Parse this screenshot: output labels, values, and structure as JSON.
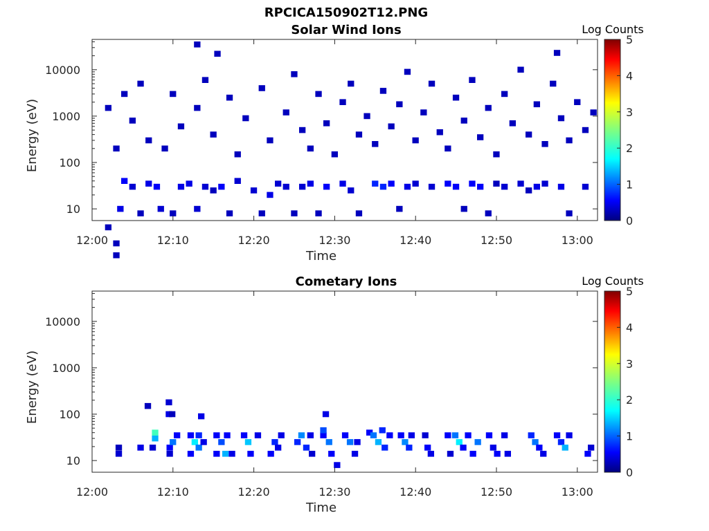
{
  "figure": {
    "title": "RPCICA150902T12.PNG"
  },
  "chart_data": [
    {
      "type": "heatmap",
      "title": "Solar Wind Ions",
      "xlabel": "Time",
      "ylabel": "Energy (eV)",
      "xticks": [
        "12:00",
        "12:10",
        "12:20",
        "12:30",
        "12:40",
        "12:50",
        "13:00"
      ],
      "xlim_minutes": [
        0,
        62.5
      ],
      "yscale": "log",
      "yticks": [
        "10",
        "100",
        "1000",
        "10000"
      ],
      "ylim": [
        5.6,
        45000
      ],
      "colorbar": {
        "label": "Log Counts",
        "range": [
          0,
          5
        ],
        "ticks": [
          "0",
          "1",
          "2",
          "3",
          "4",
          "5"
        ],
        "colormap": "jet"
      },
      "cells": [
        [
          2,
          4,
          0.3
        ],
        [
          3,
          1,
          0.3
        ],
        [
          3,
          1.8,
          0.3
        ],
        [
          4,
          40,
          0.6
        ],
        [
          5,
          30,
          0.4
        ],
        [
          3,
          200,
          0.3
        ],
        [
          2,
          1500,
          0.3
        ],
        [
          3.5,
          10,
          0.5
        ],
        [
          6,
          8,
          0.3
        ],
        [
          7,
          35,
          0.5
        ],
        [
          8,
          30,
          0.6
        ],
        [
          8.5,
          10,
          0.4
        ],
        [
          10,
          8,
          0.3
        ],
        [
          11,
          30,
          0.5
        ],
        [
          12,
          35,
          0.5
        ],
        [
          13,
          10,
          0.4
        ],
        [
          14,
          30,
          0.4
        ],
        [
          15,
          25,
          0.3
        ],
        [
          16,
          30,
          0.6
        ],
        [
          17,
          8,
          0.3
        ],
        [
          18,
          40,
          0.4
        ],
        [
          20,
          25,
          0.4
        ],
        [
          21,
          8,
          0.3
        ],
        [
          22,
          20,
          0.5
        ],
        [
          23,
          35,
          0.4
        ],
        [
          24,
          30,
          0.4
        ],
        [
          25,
          8,
          0.3
        ],
        [
          26,
          30,
          0.4
        ],
        [
          27,
          35,
          0.5
        ],
        [
          28,
          8,
          0.3
        ],
        [
          29,
          30,
          0.6
        ],
        [
          31,
          35,
          0.5
        ],
        [
          32,
          25,
          0.4
        ],
        [
          33,
          8,
          0.3
        ],
        [
          35,
          35,
          0.8
        ],
        [
          36,
          30,
          0.8
        ],
        [
          37,
          35,
          0.6
        ],
        [
          38,
          10,
          0.3
        ],
        [
          39,
          30,
          0.5
        ],
        [
          40,
          35,
          0.4
        ],
        [
          42,
          30,
          0.4
        ],
        [
          44,
          35,
          0.6
        ],
        [
          45,
          30,
          0.6
        ],
        [
          46,
          10,
          0.3
        ],
        [
          47,
          35,
          0.6
        ],
        [
          48,
          30,
          0.6
        ],
        [
          49,
          8,
          0.3
        ],
        [
          50,
          35,
          0.3
        ],
        [
          51,
          30,
          0.4
        ],
        [
          53,
          35,
          0.4
        ],
        [
          54,
          25,
          0.3
        ],
        [
          55,
          30,
          0.5
        ],
        [
          56,
          35,
          0.4
        ],
        [
          58,
          30,
          0.5
        ],
        [
          59,
          8,
          0.3
        ],
        [
          61,
          30,
          0.4
        ],
        [
          4,
          3000,
          0.3
        ],
        [
          5,
          800,
          0.3
        ],
        [
          6,
          5000,
          0.3
        ],
        [
          7,
          300,
          0.3
        ],
        [
          9,
          200,
          0.3
        ],
        [
          10,
          3000,
          0.3
        ],
        [
          11,
          600,
          0.3
        ],
        [
          13,
          1500,
          0.3
        ],
        [
          14,
          6000,
          0.3
        ],
        [
          15,
          400,
          0.3
        ],
        [
          17,
          2500,
          0.3
        ],
        [
          18,
          150,
          0.3
        ],
        [
          19,
          900,
          0.3
        ],
        [
          21,
          4000,
          0.3
        ],
        [
          22,
          300,
          0.3
        ],
        [
          24,
          1200,
          0.3
        ],
        [
          25,
          8000,
          0.3
        ],
        [
          26,
          500,
          0.3
        ],
        [
          27,
          200,
          0.3
        ],
        [
          28,
          3000,
          0.3
        ],
        [
          29,
          700,
          0.3
        ],
        [
          30,
          150,
          0.3
        ],
        [
          31,
          2000,
          0.3
        ],
        [
          32,
          5000,
          0.3
        ],
        [
          33,
          400,
          0.3
        ],
        [
          34,
          1000,
          0.3
        ],
        [
          35,
          250,
          0.3
        ],
        [
          36,
          3500,
          0.3
        ],
        [
          37,
          600,
          0.3
        ],
        [
          38,
          1800,
          0.3
        ],
        [
          39,
          9000,
          0.3
        ],
        [
          40,
          300,
          0.3
        ],
        [
          41,
          1200,
          0.3
        ],
        [
          42,
          5000,
          0.3
        ],
        [
          43,
          450,
          0.3
        ],
        [
          44,
          200,
          0.3
        ],
        [
          45,
          2500,
          0.3
        ],
        [
          46,
          800,
          0.3
        ],
        [
          47,
          6000,
          0.3
        ],
        [
          48,
          350,
          0.3
        ],
        [
          49,
          1500,
          0.3
        ],
        [
          50,
          150,
          0.3
        ],
        [
          51,
          3000,
          0.3
        ],
        [
          52,
          700,
          0.3
        ],
        [
          53,
          10000,
          0.3
        ],
        [
          54,
          400,
          0.3
        ],
        [
          55,
          1800,
          0.3
        ],
        [
          56,
          250,
          0.3
        ],
        [
          57,
          5000,
          0.3
        ],
        [
          58,
          900,
          0.3
        ],
        [
          59,
          300,
          0.3
        ],
        [
          60,
          2000,
          0.3
        ],
        [
          61,
          500,
          0.3
        ],
        [
          62,
          1200,
          0.3
        ],
        [
          13,
          35000,
          0.3
        ],
        [
          15.5,
          22000,
          0.3
        ],
        [
          57.5,
          23000,
          0.3
        ]
      ]
    },
    {
      "type": "heatmap",
      "title": "Cometary Ions",
      "xlabel": "Time",
      "ylabel": "Energy (eV)",
      "xticks": [
        "12:00",
        "12:10",
        "12:20",
        "12:30",
        "12:40",
        "12:50",
        "13:00"
      ],
      "xlim_minutes": [
        0,
        62.5
      ],
      "yscale": "log",
      "yticks": [
        "10",
        "100",
        "1000",
        "10000"
      ],
      "ylim": [
        5.6,
        45000
      ],
      "colorbar": {
        "label": "Log Counts",
        "range": [
          0,
          5
        ],
        "ticks": [
          "0",
          "1",
          "2",
          "3",
          "4",
          "5"
        ],
        "colormap": "jet"
      },
      "cells": [
        [
          3.3,
          14,
          0.4
        ],
        [
          3.3,
          19,
          0.3
        ],
        [
          6,
          19,
          0.5
        ],
        [
          6.9,
          150,
          0.3
        ],
        [
          7.5,
          19,
          0.4
        ],
        [
          7.8,
          30,
          1.5
        ],
        [
          7.8,
          40,
          2.2
        ],
        [
          9.5,
          100,
          0.5
        ],
        [
          9.5,
          180,
          0.4
        ],
        [
          9.9,
          100,
          0.3
        ],
        [
          9.6,
          14,
          0.4
        ],
        [
          9.6,
          19,
          0.6
        ],
        [
          10,
          25,
          1.2
        ],
        [
          10.5,
          35,
          0.6
        ],
        [
          12.2,
          14,
          0.6
        ],
        [
          12.2,
          35,
          0.6
        ],
        [
          12.7,
          25,
          1.8
        ],
        [
          13.2,
          19,
          1.2
        ],
        [
          13.2,
          35,
          0.8
        ],
        [
          13.5,
          90,
          0.5
        ],
        [
          13.8,
          25,
          0.5
        ],
        [
          15.4,
          14,
          0.6
        ],
        [
          15.4,
          35,
          0.6
        ],
        [
          16,
          25,
          1.0
        ],
        [
          16.5,
          14,
          1.5
        ],
        [
          16.7,
          35,
          0.6
        ],
        [
          17.3,
          14,
          0.5
        ],
        [
          18.8,
          35,
          0.6
        ],
        [
          19.3,
          25,
          1.6
        ],
        [
          19.6,
          14,
          0.6
        ],
        [
          20.5,
          35,
          0.5
        ],
        [
          22.1,
          14,
          0.6
        ],
        [
          22.6,
          25,
          0.8
        ],
        [
          23,
          19,
          0.5
        ],
        [
          23.4,
          35,
          0.5
        ],
        [
          25.4,
          25,
          0.8
        ],
        [
          25.9,
          35,
          1.3
        ],
        [
          26.5,
          19,
          0.8
        ],
        [
          27,
          35,
          0.5
        ],
        [
          27.2,
          14,
          0.4
        ],
        [
          28.6,
          35,
          0.6
        ],
        [
          28.6,
          45,
          1.0
        ],
        [
          28.9,
          100,
          0.5
        ],
        [
          29.3,
          25,
          1.2
        ],
        [
          29.6,
          14,
          0.6
        ],
        [
          30.3,
          8,
          0.5
        ],
        [
          31.3,
          35,
          0.6
        ],
        [
          31.9,
          25,
          1.2
        ],
        [
          32.5,
          14,
          0.5
        ],
        [
          32.8,
          25,
          0.5
        ],
        [
          34.3,
          40,
          0.6
        ],
        [
          34.8,
          35,
          1.2
        ],
        [
          35.4,
          25,
          1.5
        ],
        [
          35.9,
          45,
          0.8
        ],
        [
          36.2,
          19,
          0.8
        ],
        [
          36.8,
          35,
          0.6
        ],
        [
          38.2,
          35,
          0.6
        ],
        [
          38.7,
          25,
          1.3
        ],
        [
          39.2,
          19,
          0.8
        ],
        [
          39.5,
          35,
          0.5
        ],
        [
          41.2,
          35,
          0.4
        ],
        [
          41.5,
          19,
          0.6
        ],
        [
          41.9,
          14,
          0.5
        ],
        [
          44,
          35,
          0.6
        ],
        [
          44.3,
          14,
          0.4
        ],
        [
          44.9,
          35,
          1.2
        ],
        [
          45.4,
          25,
          1.8
        ],
        [
          45.9,
          19,
          0.6
        ],
        [
          46.5,
          35,
          0.6
        ],
        [
          47.1,
          14,
          0.6
        ],
        [
          47.7,
          25,
          1.2
        ],
        [
          49.1,
          35,
          0.6
        ],
        [
          49.6,
          19,
          0.5
        ],
        [
          50.1,
          14,
          0.6
        ],
        [
          51,
          35,
          0.5
        ],
        [
          51.4,
          14,
          0.5
        ],
        [
          54.3,
          35,
          0.8
        ],
        [
          54.8,
          25,
          1.2
        ],
        [
          55.3,
          19,
          0.6
        ],
        [
          55.8,
          14,
          0.5
        ],
        [
          57.5,
          35,
          0.6
        ],
        [
          58,
          25,
          0.8
        ],
        [
          58.5,
          19,
          1.5
        ],
        [
          59,
          35,
          0.5
        ],
        [
          61.3,
          14,
          0.6
        ],
        [
          61.7,
          19,
          0.4
        ]
      ]
    }
  ]
}
